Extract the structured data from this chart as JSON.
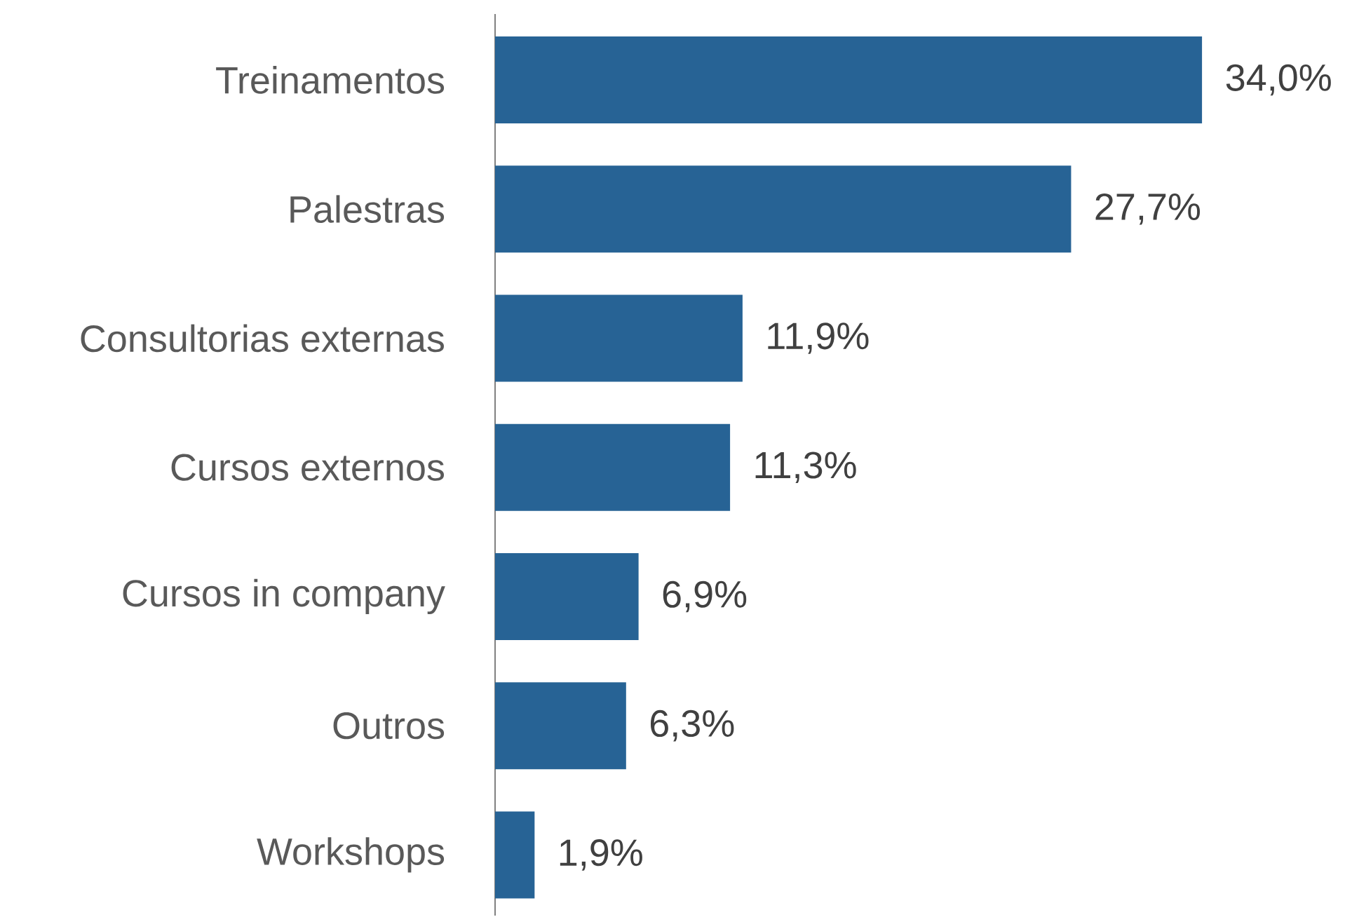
{
  "chart_data": {
    "type": "bar",
    "orientation": "horizontal",
    "categories": [
      "Treinamentos",
      "Palestras",
      "Consultorias externas",
      "Cursos externos",
      "Cursos in company",
      "Outros",
      "Workshops"
    ],
    "values": [
      34.0,
      27.7,
      11.9,
      11.3,
      6.9,
      6.3,
      1.9
    ],
    "value_labels": [
      "34,0%",
      "27,7%",
      "11,9%",
      "11,3%",
      "6,9%",
      "6,3%",
      "1,9%"
    ],
    "color": "#276395"
  }
}
